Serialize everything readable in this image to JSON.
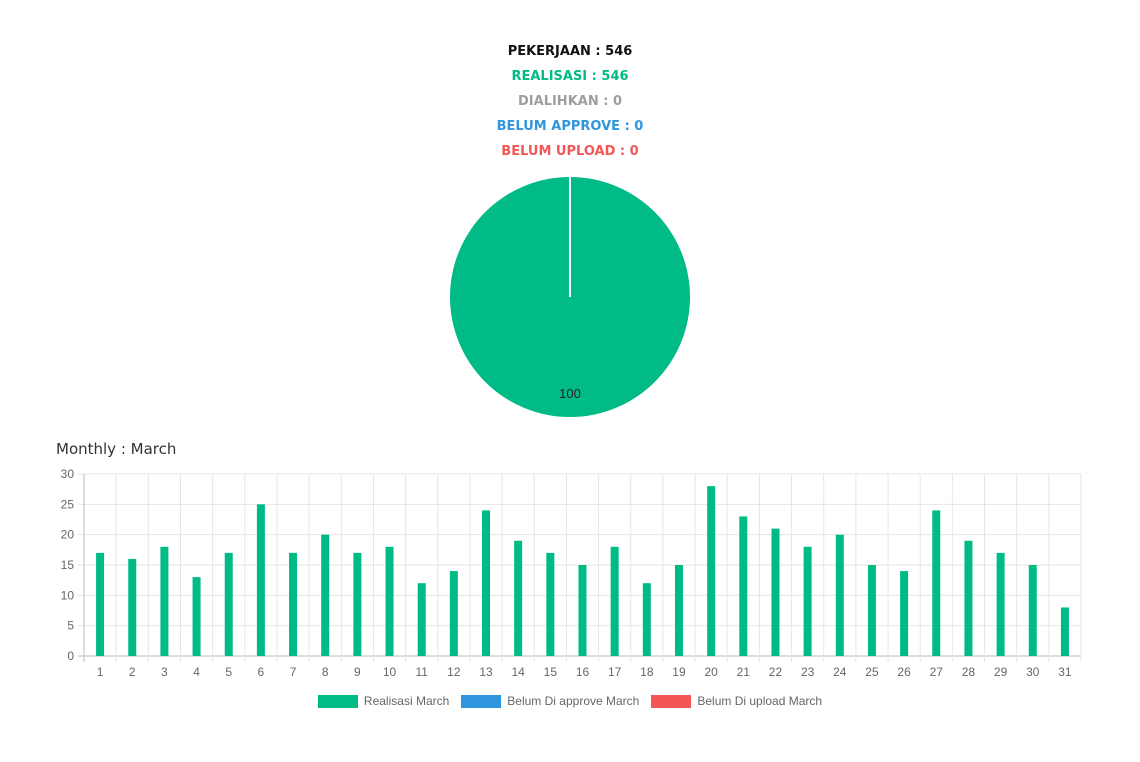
{
  "summary": {
    "pekerjaan": "PEKERJAAN : 546",
    "realisasi": "REALISASI : 546",
    "dialihkan": "DIALIHKAN : 0",
    "belum_approve": "BELUM APPROVE : 0",
    "belum_upload": "BELUM UPLOAD : 0"
  },
  "colors": {
    "pekerjaan": "#111111",
    "realisasi": "#00bb86",
    "dialihkan": "#9e9e9e",
    "belum_approve": "#2f96de",
    "belum_upload": "#f25656",
    "axis_text": "#666666",
    "grid": "#e6e6e6"
  },
  "monthly": {
    "title": "Monthly : March"
  },
  "chart_data": [
    {
      "type": "pie",
      "slices": [
        {
          "name": "Realisasi",
          "value": 100,
          "color": "#00bb86"
        },
        {
          "name": "Belum Approve",
          "value": 0,
          "color": "#2f96de"
        },
        {
          "name": "Belum Upload",
          "value": 0,
          "color": "#f25656"
        }
      ],
      "labels": [
        "100"
      ]
    },
    {
      "type": "bar",
      "categories": [
        "1",
        "2",
        "3",
        "4",
        "5",
        "6",
        "7",
        "8",
        "9",
        "10",
        "11",
        "12",
        "13",
        "14",
        "15",
        "16",
        "17",
        "18",
        "19",
        "20",
        "21",
        "22",
        "23",
        "24",
        "25",
        "26",
        "27",
        "28",
        "29",
        "30",
        "31"
      ],
      "series": [
        {
          "name": "Realisasi March",
          "color": "#00bb86",
          "values": [
            17,
            16,
            18,
            13,
            17,
            25,
            17,
            20,
            17,
            18,
            12,
            14,
            24,
            19,
            17,
            15,
            18,
            12,
            15,
            28,
            23,
            21,
            18,
            20,
            15,
            14,
            24,
            19,
            17,
            15,
            8
          ]
        },
        {
          "name": "Belum Di approve March",
          "color": "#2f96de",
          "values": [
            0,
            0,
            0,
            0,
            0,
            0,
            0,
            0,
            0,
            0,
            0,
            0,
            0,
            0,
            0,
            0,
            0,
            0,
            0,
            0,
            0,
            0,
            0,
            0,
            0,
            0,
            0,
            0,
            0,
            0,
            0
          ]
        },
        {
          "name": "Belum Di upload March",
          "color": "#f25656",
          "values": [
            0,
            0,
            0,
            0,
            0,
            0,
            0,
            0,
            0,
            0,
            0,
            0,
            0,
            0,
            0,
            0,
            0,
            0,
            0,
            0,
            0,
            0,
            0,
            0,
            0,
            0,
            0,
            0,
            0,
            0,
            0
          ]
        }
      ],
      "ylim": [
        0,
        30
      ],
      "yticks": [
        "0",
        "5",
        "10",
        "15",
        "20",
        "25",
        "30"
      ],
      "grid": true,
      "legend_position": "bottom"
    }
  ]
}
